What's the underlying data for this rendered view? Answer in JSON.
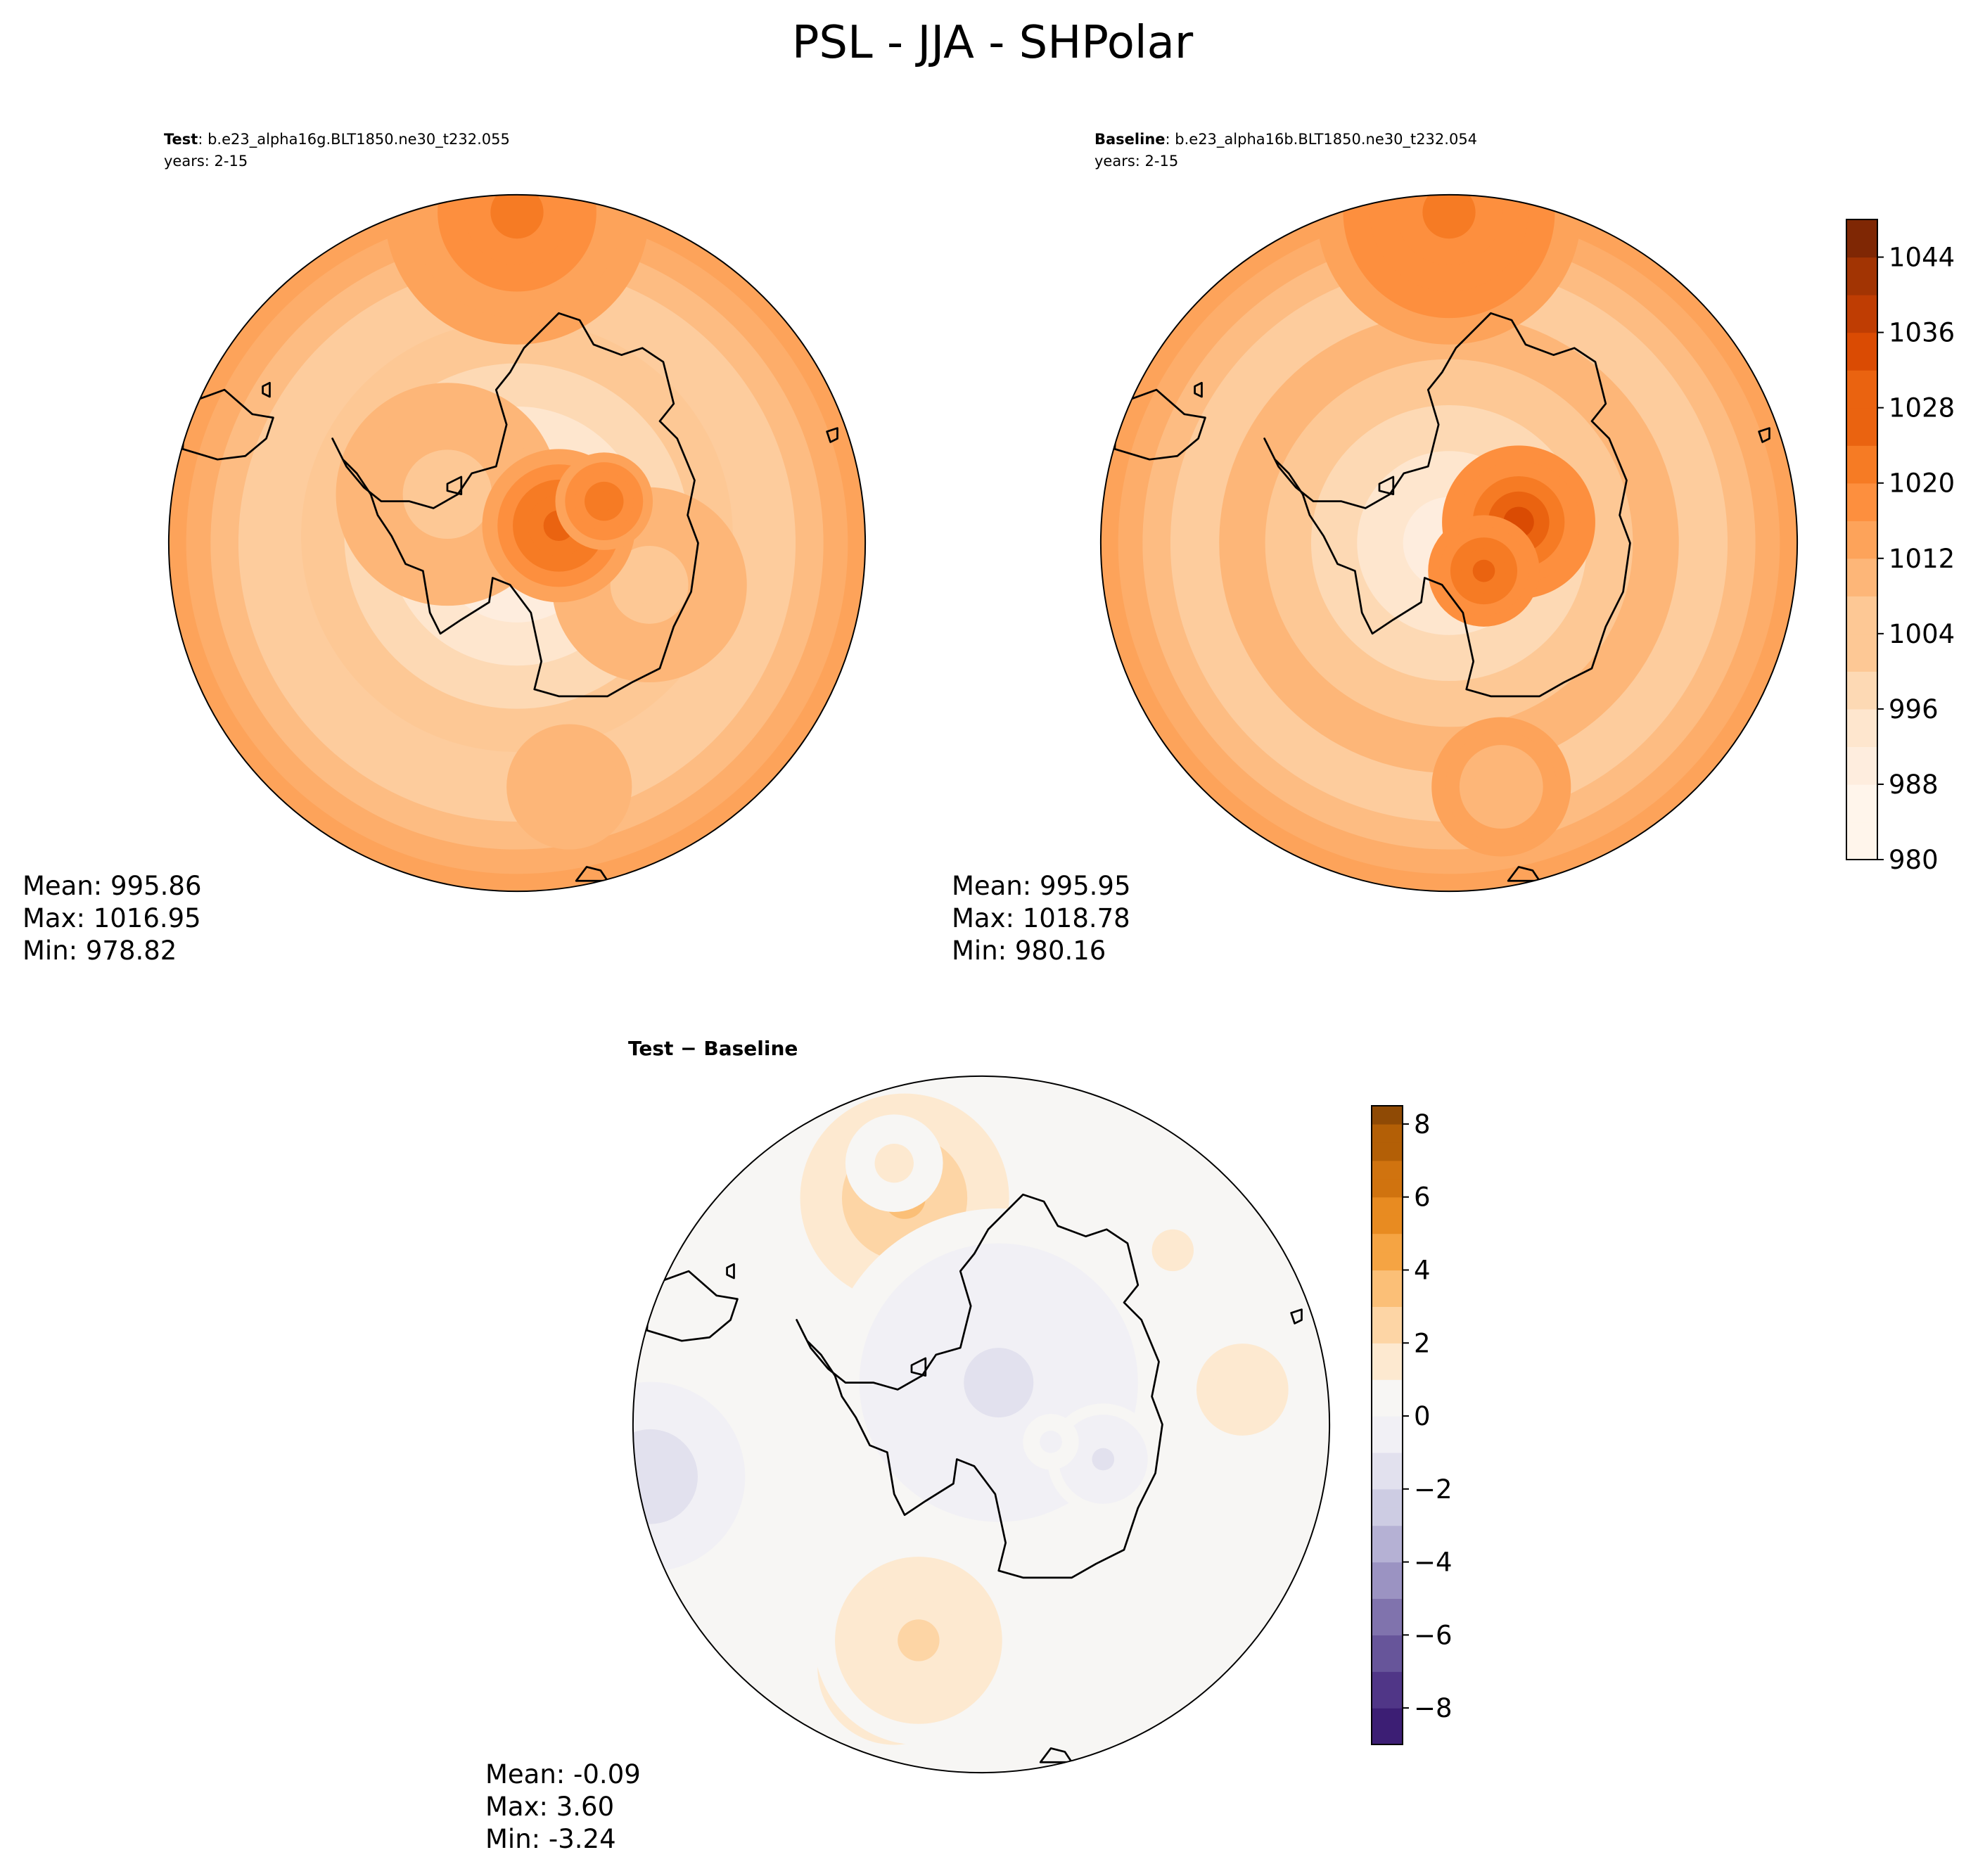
{
  "title": "PSL - JJA - SHPolar",
  "colors": {
    "oranges": [
      "#fff5eb",
      "#feedde",
      "#fee6ce",
      "#fdd9b4",
      "#fdc895",
      "#fdb678",
      "#fda35a",
      "#fd8f3e",
      "#f67b24",
      "#ea6310",
      "#da4b03",
      "#bf3d03",
      "#a23403",
      "#7f2704"
    ],
    "diverging_pos": [
      "#f7f6f4",
      "#fde9d0",
      "#fdd5a5",
      "#fbbf77",
      "#f5a443",
      "#e88b21",
      "#d0730f",
      "#b35f06",
      "#8f4a05",
      "#6b3705"
    ],
    "diverging_neg": [
      "#f1f0f5",
      "#e2e1ee",
      "#cdcce3",
      "#b5b1d4",
      "#9b93c2",
      "#8073ad",
      "#67559a",
      "#503687",
      "#3c1e74",
      "#2d0b5a"
    ],
    "coast": "#000000",
    "edge": "#000000"
  },
  "chart_data": [
    {
      "type": "heatmap",
      "panel": "test",
      "label": "Test",
      "case": ": b.e23_alpha16g.BLT1850.ne30_t232.055",
      "years": "years: 2-15",
      "stats": {
        "mean": "Mean: 995.86",
        "max": "Max: 1016.95",
        "min": "Min: 978.82"
      },
      "levels": [
        980,
        984,
        988,
        992,
        996,
        1000,
        1004,
        1008,
        1012,
        1016,
        1020
      ],
      "field": {
        "background": 1004,
        "blobs": [
          {
            "pos": [
              0.0,
              0.02
            ],
            "r": 0.62,
            "v": -22
          },
          {
            "pos": [
              -0.2,
              0.14
            ],
            "r": 0.32,
            "v": -6
          },
          {
            "pos": [
              0.38,
              -0.12
            ],
            "r": 0.28,
            "v": -6
          },
          {
            "pos": [
              0.12,
              0.05
            ],
            "r": 0.22,
            "v": 14
          },
          {
            "pos": [
              0.25,
              0.12
            ],
            "r": 0.14,
            "v": 10
          },
          {
            "pos": [
              0.15,
              -0.7
            ],
            "r": 0.18,
            "v": -4
          },
          {
            "pos": [
              0.0,
              0.95
            ],
            "r": 0.38,
            "v": 8
          }
        ]
      }
    },
    {
      "type": "heatmap",
      "panel": "baseline",
      "label": "Baseline",
      "case": ": b.e23_alpha16b.BLT1850.ne30_t232.054",
      "years": "years: 2-15",
      "stats": {
        "mean": "Mean: 995.95",
        "max": "Max: 1018.78",
        "min": "Min: 980.16"
      },
      "levels": [
        980,
        984,
        988,
        992,
        996,
        1000,
        1004,
        1008,
        1012,
        1016,
        1020
      ],
      "field": {
        "background": 1006,
        "blobs": [
          {
            "pos": [
              0.0,
              0.0
            ],
            "r": 0.66,
            "v": -22
          },
          {
            "pos": [
              0.15,
              -0.7
            ],
            "r": 0.2,
            "v": -5
          },
          {
            "pos": [
              0.2,
              0.06
            ],
            "r": 0.22,
            "v": 14
          },
          {
            "pos": [
              0.1,
              -0.08
            ],
            "r": 0.16,
            "v": 10
          },
          {
            "pos": [
              0.0,
              0.95
            ],
            "r": 0.38,
            "v": 6
          }
        ]
      }
    },
    {
      "type": "heatmap",
      "panel": "difference",
      "title": "Test − Baseline",
      "stats": {
        "mean": "Mean: -0.09",
        "max": "Max:  3.60",
        "min": "Min: -3.24"
      },
      "field": {
        "background": 0.4,
        "blobs": [
          {
            "pos": [
              -0.22,
              0.65
            ],
            "r": 0.3,
            "v": 3.0
          },
          {
            "pos": [
              -0.25,
              0.75
            ],
            "r": 0.14,
            "v": 0.8
          },
          {
            "pos": [
              0.55,
              0.5
            ],
            "r": 0.3,
            "v": 0.6
          },
          {
            "pos": [
              0.75,
              0.1
            ],
            "r": 0.22,
            "v": 1.2
          },
          {
            "pos": [
              0.05,
              0.12
            ],
            "r": 0.5,
            "v": -1.7
          },
          {
            "pos": [
              0.35,
              -0.1
            ],
            "r": 0.16,
            "v": -1.6
          },
          {
            "pos": [
              0.2,
              -0.05
            ],
            "r": 0.08,
            "v": -0.6
          },
          {
            "pos": [
              -0.95,
              -0.15
            ],
            "r": 0.34,
            "v": -2.0
          },
          {
            "pos": [
              -0.25,
              -0.7
            ],
            "r": 0.22,
            "v": 3.2
          },
          {
            "pos": [
              -0.18,
              -0.62
            ],
            "r": 0.3,
            "v": 1.8
          }
        ]
      },
      "colorbar": {
        "min": -9,
        "max": 8.5
      }
    }
  ],
  "colorbar_abs": {
    "min": 980,
    "max": 1048,
    "step": 4,
    "ticks": [
      "980",
      "988",
      "996",
      "1004",
      "1012",
      "1020",
      "1028",
      "1036",
      "1044"
    ]
  },
  "colorbar_diff": {
    "ticks": [
      "−8",
      "−6",
      "−4",
      "−2",
      "0",
      "2",
      "4",
      "6",
      "8"
    ],
    "tick_values": [
      -8,
      -6,
      -4,
      -2,
      0,
      2,
      4,
      6,
      8
    ]
  },
  "coastlines": {
    "antarctica": [
      [
        0.12,
        0.66
      ],
      [
        0.18,
        0.64
      ],
      [
        0.22,
        0.57
      ],
      [
        0.3,
        0.54
      ],
      [
        0.36,
        0.56
      ],
      [
        0.42,
        0.52
      ],
      [
        0.45,
        0.4
      ],
      [
        0.41,
        0.35
      ],
      [
        0.46,
        0.3
      ],
      [
        0.51,
        0.18
      ],
      [
        0.49,
        0.08
      ],
      [
        0.52,
        0.0
      ],
      [
        0.5,
        -0.14
      ],
      [
        0.45,
        -0.24
      ],
      [
        0.41,
        -0.36
      ],
      [
        0.33,
        -0.4
      ],
      [
        0.26,
        -0.44
      ],
      [
        0.12,
        -0.44
      ],
      [
        0.05,
        -0.42
      ],
      [
        0.07,
        -0.34
      ],
      [
        0.04,
        -0.2
      ],
      [
        -0.02,
        -0.12
      ],
      [
        -0.07,
        -0.1
      ],
      [
        -0.08,
        -0.17
      ],
      [
        -0.16,
        -0.22
      ],
      [
        -0.22,
        -0.26
      ],
      [
        -0.25,
        -0.2
      ],
      [
        -0.27,
        -0.08
      ],
      [
        -0.32,
        -0.06
      ],
      [
        -0.36,
        0.02
      ],
      [
        -0.4,
        0.08
      ],
      [
        -0.42,
        0.14
      ],
      [
        -0.46,
        0.2
      ],
      [
        -0.5,
        0.24
      ],
      [
        -0.53,
        0.3
      ],
      [
        -0.49,
        0.22
      ],
      [
        -0.44,
        0.16
      ],
      [
        -0.39,
        0.12
      ],
      [
        -0.31,
        0.12
      ],
      [
        -0.24,
        0.1
      ],
      [
        -0.17,
        0.14
      ],
      [
        -0.13,
        0.2
      ],
      [
        -0.06,
        0.22
      ],
      [
        -0.03,
        0.34
      ],
      [
        -0.06,
        0.44
      ],
      [
        -0.02,
        0.49
      ],
      [
        0.02,
        0.56
      ],
      [
        0.08,
        0.62
      ],
      [
        0.12,
        0.66
      ]
    ],
    "peninsula_islands": [
      [
        [
          -0.2,
          0.17
        ],
        [
          -0.16,
          0.19
        ],
        [
          -0.16,
          0.14
        ],
        [
          -0.2,
          0.15
        ]
      ]
    ],
    "south_america": [
      [
        -0.95,
        0.4
      ],
      [
        -0.84,
        0.44
      ],
      [
        -0.76,
        0.37
      ],
      [
        -0.7,
        0.36
      ],
      [
        -0.72,
        0.3
      ],
      [
        -0.78,
        0.25
      ],
      [
        -0.86,
        0.24
      ],
      [
        -0.96,
        0.27
      ]
    ],
    "falklands": [
      [
        -0.73,
        0.45
      ],
      [
        -0.71,
        0.46
      ],
      [
        -0.71,
        0.42
      ],
      [
        -0.73,
        0.43
      ]
    ],
    "small_island": [
      [
        0.89,
        0.32
      ],
      [
        0.92,
        0.33
      ],
      [
        0.92,
        0.3
      ],
      [
        0.9,
        0.29
      ]
    ],
    "bottom_land": [
      [
        0.17,
        -0.97
      ],
      [
        0.2,
        -0.93
      ],
      [
        0.24,
        -0.94
      ],
      [
        0.26,
        -0.97
      ]
    ]
  }
}
